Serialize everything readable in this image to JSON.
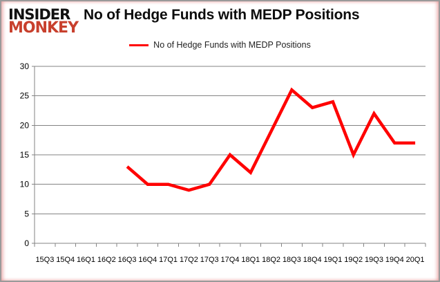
{
  "brand": {
    "line1": "INSIDER",
    "line2": "MONKEY"
  },
  "header": {
    "title": "No of Hedge Funds with MEDP Positions"
  },
  "legend": {
    "label": "No of Hedge Funds with MEDP Positions"
  },
  "colors": {
    "series": "#FF0000",
    "gridline": "#838383",
    "frame_border": "#9A9A9A",
    "frame_glow": "#E28888",
    "logo_primary": "#111111",
    "logo_accent": "#C8402D"
  },
  "chart_data": {
    "type": "line",
    "title": "No of Hedge Funds with MEDP Positions",
    "categories": [
      "15Q3",
      "15Q4",
      "16Q1",
      "16Q2",
      "16Q3",
      "16Q4",
      "17Q1",
      "17Q2",
      "17Q3",
      "17Q4",
      "18Q1",
      "18Q2",
      "18Q3",
      "18Q4",
      "19Q1",
      "19Q2",
      "19Q3",
      "19Q4",
      "20Q1"
    ],
    "series": [
      {
        "name": "No of Hedge Funds with MEDP Positions",
        "color": "#FF0000",
        "values": [
          null,
          null,
          null,
          null,
          13,
          10,
          10,
          9,
          10,
          15,
          12,
          19,
          26,
          23,
          24,
          15,
          22,
          17,
          17
        ]
      }
    ],
    "xlabel": "",
    "ylabel": "",
    "ylim": [
      0,
      30
    ],
    "ytick_step": 5,
    "yticks": [
      0,
      5,
      10,
      15,
      20,
      25,
      30
    ],
    "grid": "horizontal",
    "legend_position": "top-center"
  }
}
